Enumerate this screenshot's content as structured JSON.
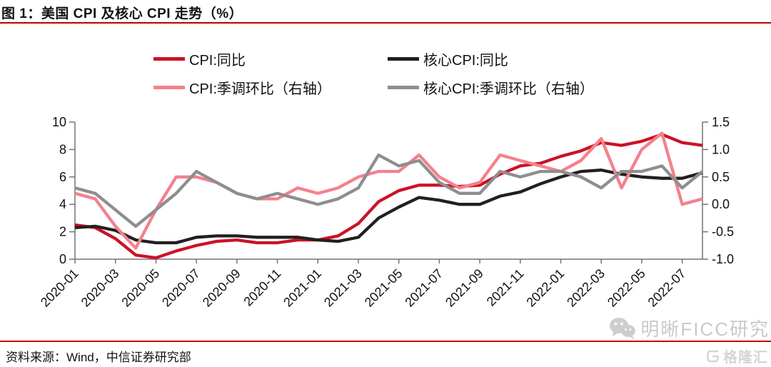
{
  "header": {
    "title": "图 1：美国 CPI 及核心 CPI 走势（%）"
  },
  "legend": [
    {
      "label": "CPI:同比",
      "color": "#cc1226"
    },
    {
      "label": "核心CPI:同比",
      "color": "#231f20"
    },
    {
      "label": "CPI:季调环比（右轴）",
      "color": "#f5808d"
    },
    {
      "label": "核心CPI:季调环比（右轴）",
      "color": "#8e8e8e"
    }
  ],
  "chart_data": {
    "type": "line",
    "x": [
      "2020-01",
      "2020-02",
      "2020-03",
      "2020-04",
      "2020-05",
      "2020-06",
      "2020-07",
      "2020-08",
      "2020-09",
      "2020-10",
      "2020-11",
      "2020-12",
      "2021-01",
      "2021-02",
      "2021-03",
      "2021-04",
      "2021-05",
      "2021-06",
      "2021-07",
      "2021-08",
      "2021-09",
      "2021-10",
      "2021-11",
      "2021-12",
      "2022-01",
      "2022-02",
      "2022-03",
      "2022-04",
      "2022-05",
      "2022-06",
      "2022-07",
      "2022-08"
    ],
    "x_tick_labels": [
      "2020-01",
      "2020-03",
      "2020-05",
      "2020-07",
      "2020-09",
      "2020-11",
      "2021-01",
      "2021-03",
      "2021-05",
      "2021-07",
      "2021-09",
      "2021-11",
      "2022-01",
      "2022-03",
      "2022-05",
      "2022-07"
    ],
    "left_axis": {
      "min": 0,
      "max": 10,
      "ticks": [
        10,
        8,
        6,
        4,
        2,
        0
      ]
    },
    "right_axis": {
      "min": -1.0,
      "max": 1.5,
      "ticks": [
        1.5,
        1.0,
        0.5,
        0.0,
        -0.5,
        -1.0
      ]
    },
    "grid": false,
    "legend_position": "top",
    "series": [
      {
        "name": "CPI:同比",
        "axis": "left",
        "color": "#cc1226",
        "values": [
          2.5,
          2.3,
          1.5,
          0.3,
          0.1,
          0.6,
          1.0,
          1.3,
          1.4,
          1.2,
          1.2,
          1.4,
          1.4,
          1.7,
          2.6,
          4.2,
          5.0,
          5.4,
          5.4,
          5.3,
          5.4,
          6.2,
          6.8,
          7.0,
          7.5,
          7.9,
          8.5,
          8.3,
          8.6,
          9.1,
          8.5,
          8.3
        ]
      },
      {
        "name": "核心CPI:同比",
        "axis": "left",
        "color": "#231f20",
        "values": [
          2.3,
          2.4,
          2.1,
          1.4,
          1.2,
          1.2,
          1.6,
          1.7,
          1.7,
          1.6,
          1.6,
          1.6,
          1.4,
          1.3,
          1.6,
          3.0,
          3.8,
          4.5,
          4.3,
          4.0,
          4.0,
          4.6,
          4.9,
          5.5,
          6.0,
          6.4,
          6.5,
          6.2,
          6.0,
          5.9,
          5.9,
          6.3
        ]
      },
      {
        "name": "CPI:季调环比（右轴）",
        "axis": "right",
        "color": "#f5808d",
        "values": [
          0.2,
          0.1,
          -0.4,
          -0.8,
          -0.1,
          0.5,
          0.5,
          0.4,
          0.2,
          0.1,
          0.1,
          0.3,
          0.2,
          0.3,
          0.5,
          0.6,
          0.6,
          0.9,
          0.5,
          0.3,
          0.4,
          0.9,
          0.8,
          0.7,
          0.6,
          0.8,
          1.2,
          0.3,
          1.0,
          1.3,
          0.0,
          0.1
        ]
      },
      {
        "name": "核心CPI:季调环比（右轴）",
        "axis": "right",
        "color": "#8e8e8e",
        "values": [
          0.3,
          0.2,
          -0.1,
          -0.4,
          -0.1,
          0.2,
          0.6,
          0.4,
          0.2,
          0.1,
          0.2,
          0.1,
          0.0,
          0.1,
          0.3,
          0.9,
          0.7,
          0.8,
          0.4,
          0.2,
          0.2,
          0.6,
          0.5,
          0.6,
          0.6,
          0.5,
          0.3,
          0.6,
          0.6,
          0.7,
          0.3,
          0.6
        ]
      }
    ]
  },
  "footer": {
    "source": "资料来源：Wind，中信证券研究部"
  },
  "watermarks": {
    "wechat_text": "明晰FICC研究",
    "logo_text": "格隆汇"
  }
}
